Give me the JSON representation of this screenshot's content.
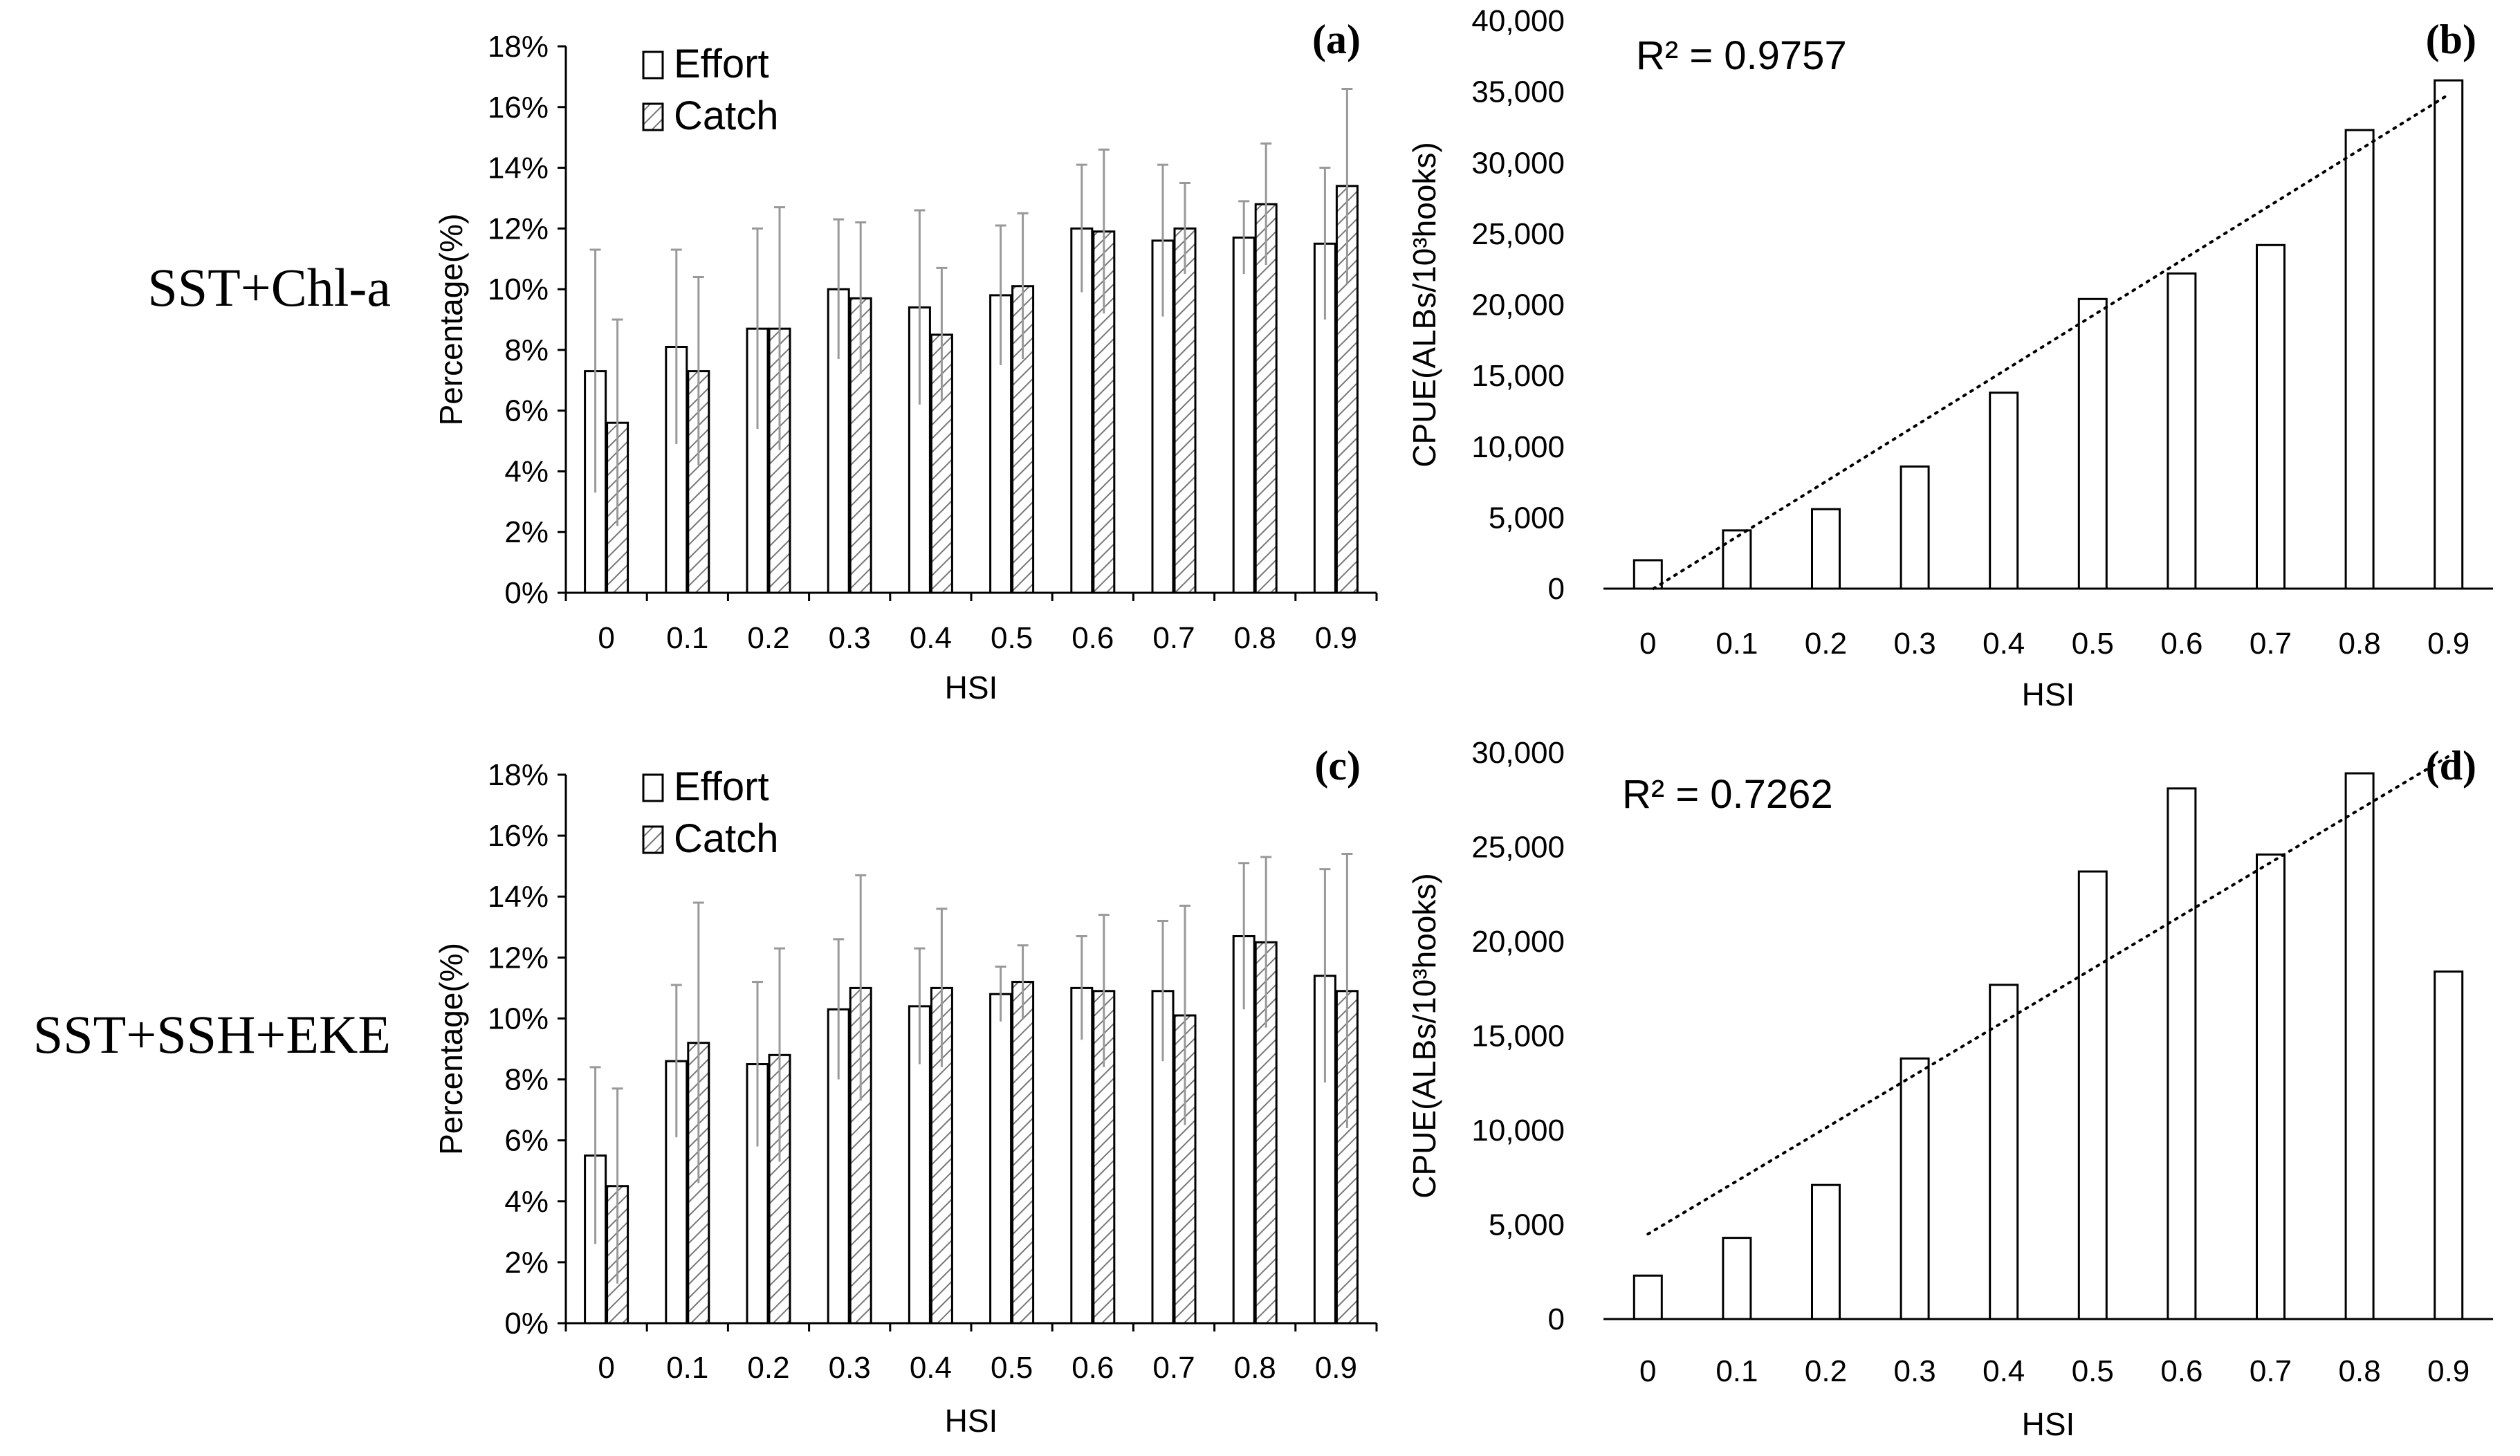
{
  "row_labels": [
    "SST+Chl-a",
    "SST+SSH+EKE"
  ],
  "chart_data": [
    {
      "id": "a",
      "type": "bar",
      "panel_label": "(a)",
      "title": "",
      "xlabel": "HSI",
      "ylabel": "Percentage(%)",
      "categories": [
        "0",
        "0.1",
        "0.2",
        "0.3",
        "0.4",
        "0.5",
        "0.6",
        "0.7",
        "0.8",
        "0.9"
      ],
      "ylim": [
        0,
        18
      ],
      "ytick_values": [
        0,
        2,
        4,
        6,
        8,
        10,
        12,
        14,
        16,
        18
      ],
      "ytick_labels": [
        "0%",
        "2%",
        "4%",
        "6%",
        "8%",
        "10%",
        "12%",
        "14%",
        "16%",
        "18%"
      ],
      "legend": [
        "Effort",
        "Catch"
      ],
      "legend_position": "top-left",
      "series": [
        {
          "name": "Effort",
          "values": [
            7.3,
            8.1,
            8.7,
            10.0,
            9.4,
            9.8,
            12.0,
            11.6,
            11.7,
            11.5
          ],
          "errors": [
            4.0,
            3.2,
            3.3,
            2.3,
            3.2,
            2.3,
            2.1,
            2.5,
            1.2,
            2.5
          ]
        },
        {
          "name": "Catch",
          "values": [
            5.6,
            7.3,
            8.7,
            9.7,
            8.5,
            10.1,
            11.9,
            12.0,
            12.8,
            13.4
          ],
          "errors": [
            3.4,
            3.1,
            4.0,
            2.5,
            2.2,
            2.4,
            2.7,
            1.5,
            2.0,
            3.2
          ]
        }
      ]
    },
    {
      "id": "b",
      "type": "bar",
      "panel_label": "(b)",
      "title": "",
      "xlabel": "HSI",
      "ylabel": "CPUE(ALBs/10³hooks)",
      "categories": [
        "0",
        "0.1",
        "0.2",
        "0.3",
        "0.4",
        "0.5",
        "0.6",
        "0.7",
        "0.8",
        "0.9"
      ],
      "ylim": [
        0,
        40000
      ],
      "ytick_values": [
        0,
        5000,
        10000,
        15000,
        20000,
        25000,
        30000,
        35000,
        40000
      ],
      "ytick_labels": [
        "0",
        "5,000",
        "10,000",
        "15,000",
        "20,000",
        "25,000",
        "30,000",
        "35,000",
        "40,000"
      ],
      "series": [
        {
          "name": "CPUE",
          "values": [
            2000,
            4100,
            5600,
            8600,
            13800,
            20400,
            22200,
            24200,
            32300,
            35800
          ]
        }
      ],
      "trendline": {
        "type": "linear",
        "y_start": 0,
        "y_end": 34800
      },
      "annotation": "R² = 0.9757"
    },
    {
      "id": "c",
      "type": "bar",
      "panel_label": "(c)",
      "title": "",
      "xlabel": "HSI",
      "ylabel": "Percentage(%)",
      "categories": [
        "0",
        "0.1",
        "0.2",
        "0.3",
        "0.4",
        "0.5",
        "0.6",
        "0.7",
        "0.8",
        "0.9"
      ],
      "ylim": [
        0,
        18
      ],
      "ytick_values": [
        0,
        2,
        4,
        6,
        8,
        10,
        12,
        14,
        16,
        18
      ],
      "ytick_labels": [
        "0%",
        "2%",
        "4%",
        "6%",
        "8%",
        "10%",
        "12%",
        "14%",
        "16%",
        "18%"
      ],
      "legend": [
        "Effort",
        "Catch"
      ],
      "legend_position": "top-left",
      "series": [
        {
          "name": "Effort",
          "values": [
            5.5,
            8.6,
            8.5,
            10.3,
            10.4,
            10.8,
            11.0,
            10.9,
            12.7,
            11.4
          ],
          "errors": [
            2.9,
            2.5,
            2.7,
            2.3,
            1.9,
            0.9,
            1.7,
            2.3,
            2.4,
            3.5
          ]
        },
        {
          "name": "Catch",
          "values": [
            4.5,
            9.2,
            8.8,
            11.0,
            11.0,
            11.2,
            10.9,
            10.1,
            12.5,
            10.9
          ],
          "errors": [
            3.2,
            4.6,
            3.5,
            3.7,
            2.6,
            1.2,
            2.5,
            3.6,
            2.8,
            4.5
          ]
        }
      ]
    },
    {
      "id": "d",
      "type": "bar",
      "panel_label": "(d)",
      "title": "",
      "xlabel": "HSI",
      "ylabel": "CPUE(ALBs/10³hooks)",
      "categories": [
        "0",
        "0.1",
        "0.2",
        "0.3",
        "0.4",
        "0.5",
        "0.6",
        "0.7",
        "0.8",
        "0.9"
      ],
      "ylim": [
        0,
        30000
      ],
      "ytick_values": [
        0,
        5000,
        10000,
        15000,
        20000,
        25000,
        30000
      ],
      "ytick_labels": [
        "0",
        "5,000",
        "10,000",
        "15,000",
        "20,000",
        "25,000",
        "30,000"
      ],
      "series": [
        {
          "name": "CPUE",
          "values": [
            2300,
            4300,
            7100,
            13800,
            17700,
            23700,
            28100,
            24600,
            28900,
            18400
          ]
        }
      ],
      "trendline": {
        "type": "linear",
        "y_start": 4500,
        "y_end": 29800
      },
      "annotation": "R² = 0.7262"
    }
  ]
}
